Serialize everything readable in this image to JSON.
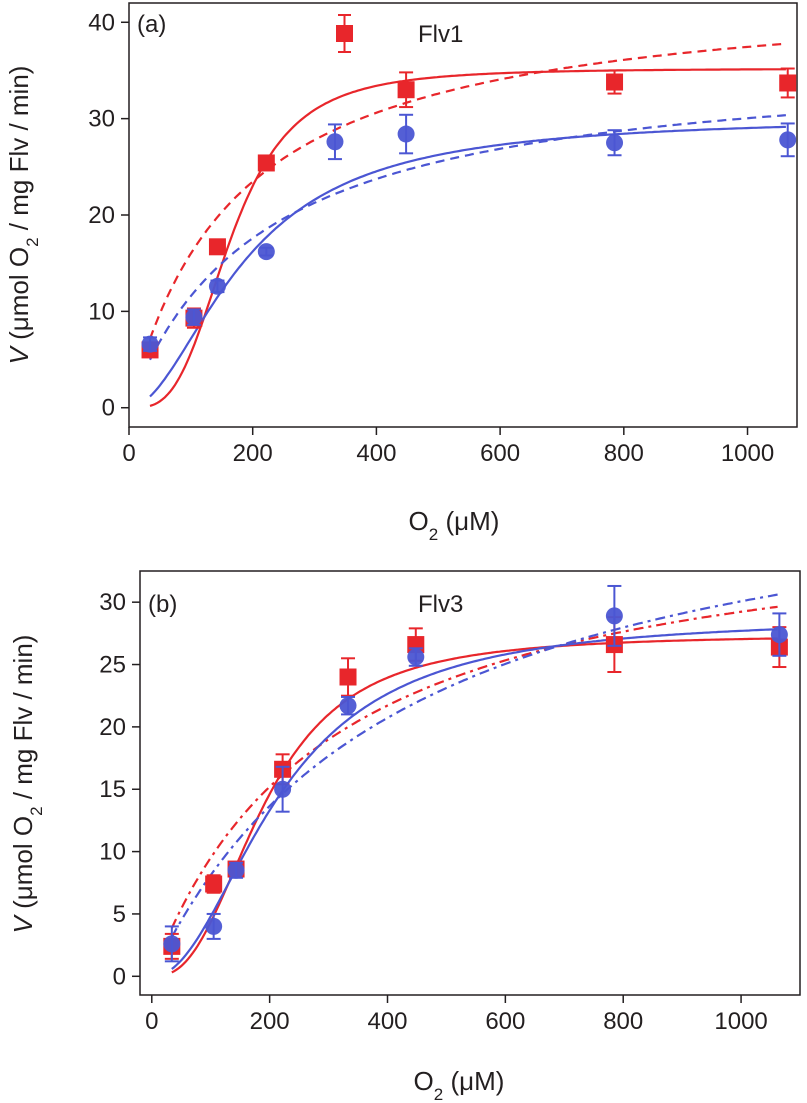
{
  "chart_data": [
    {
      "type": "scatter",
      "panel_label": "(a)",
      "title": "Flv1",
      "xlabel": "O₂ (μM)",
      "xlabel_main": "O",
      "xlabel_sub": "2",
      "xlabel_rest": " (μM)",
      "ylabel_italic": "V",
      "ylabel_main": " (μmol O",
      "ylabel_sub": "2",
      "ylabel_rest": " / mg Flv / min)",
      "xlim": [
        0,
        1080
      ],
      "ylim": [
        -2,
        42
      ],
      "xticks": [
        0,
        200,
        400,
        600,
        800,
        1000
      ],
      "xtick_labels": [
        "0",
        "200",
        "400",
        "600",
        "800",
        "1000"
      ],
      "yticks": [
        0,
        10,
        20,
        30,
        40
      ],
      "ytick_labels": [
        "0",
        "10",
        "20",
        "30",
        "40"
      ],
      "legend": "top-center",
      "series": [
        {
          "name": "Flv1 (red squares)",
          "color": "#e8262b",
          "marker": "square",
          "x": [
            34,
            105,
            143,
            222,
            333,
            448,
            785,
            1065
          ],
          "y": [
            6.0,
            9.3,
            16.7,
            25.4,
            null,
            33.0,
            33.8,
            33.7
          ],
          "err": [
            0.6,
            1.0,
            0.5,
            0.5,
            0,
            1.8,
            1.2,
            1.5
          ],
          "fit_solid": {
            "model": "hill",
            "vmax": 35.2,
            "k": 165,
            "n": 3.3
          },
          "fit_dashed": {
            "model": "michaelis_menten",
            "vmax": 44,
            "km": 175
          }
        },
        {
          "name": "Flv1 (blue circles)",
          "color": "#4b56d3",
          "marker": "circle",
          "x": [
            34,
            105,
            143,
            222,
            333,
            448,
            785,
            1065
          ],
          "y": [
            6.6,
            9.4,
            12.6,
            16.2,
            27.6,
            28.4,
            27.5,
            27.8
          ],
          "err": [
            0.7,
            0.8,
            0.6,
            0.4,
            1.8,
            2.0,
            1.3,
            1.7
          ],
          "fit_solid": {
            "model": "hill",
            "vmax": 30.2,
            "k": 185,
            "n": 1.9
          },
          "fit_dashed": {
            "model": "michaelis_menten",
            "vmax": 36.5,
            "km": 215
          }
        }
      ]
    },
    {
      "type": "scatter",
      "panel_label": "(b)",
      "title": "Flv3",
      "xlabel": "O₂ (μM)",
      "xlabel_main": "O",
      "xlabel_sub": "2",
      "xlabel_rest": " (μM)",
      "ylabel_italic": "V",
      "ylabel_main": " (μmol O",
      "ylabel_sub": "2",
      "ylabel_rest": " / mg Flv / min)",
      "xlim": [
        -20,
        1100
      ],
      "ylim": [
        -1.5,
        32.5
      ],
      "xticks": [
        0,
        200,
        400,
        600,
        800,
        1000
      ],
      "xtick_labels": [
        "0",
        "200",
        "400",
        "600",
        "800",
        "1000"
      ],
      "yticks": [
        0,
        5,
        10,
        15,
        20,
        25,
        30
      ],
      "ytick_labels": [
        "0",
        "5",
        "10",
        "15",
        "20",
        "25",
        "30"
      ],
      "legend": "top-center",
      "series": [
        {
          "name": "Flv3 (red squares)",
          "color": "#e8262b",
          "marker": "square",
          "x": [
            34,
            105,
            143,
            222,
            333,
            448,
            785,
            1065
          ],
          "y": [
            2.4,
            7.4,
            8.6,
            16.6,
            24.0,
            26.6,
            26.6,
            26.4
          ],
          "err": [
            1.0,
            0.7,
            0.5,
            1.2,
            1.5,
            1.3,
            2.2,
            1.6
          ],
          "fit_solid": {
            "model": "hill",
            "vmax": 27.4,
            "k": 190,
            "n": 2.6
          },
          "fit_dashdot": {
            "model": "michaelis_menten",
            "vmax": 38,
            "km": 300
          }
        },
        {
          "name": "Flv3 (blue circles)",
          "color": "#4b56d3",
          "marker": "circle",
          "x": [
            34,
            105,
            143,
            222,
            333,
            448,
            785,
            1065
          ],
          "y": [
            2.6,
            4.0,
            8.5,
            15.0,
            21.7,
            25.6,
            28.9,
            27.4
          ],
          "err": [
            1.4,
            1.0,
            0.6,
            1.8,
            0.7,
            0.7,
            2.4,
            1.7
          ],
          "fit_solid": {
            "model": "hill",
            "vmax": 28.8,
            "k": 215,
            "n": 2.1
          },
          "fit_dashdot": {
            "model": "michaelis_menten",
            "vmax": 43,
            "km": 430
          }
        }
      ]
    }
  ]
}
